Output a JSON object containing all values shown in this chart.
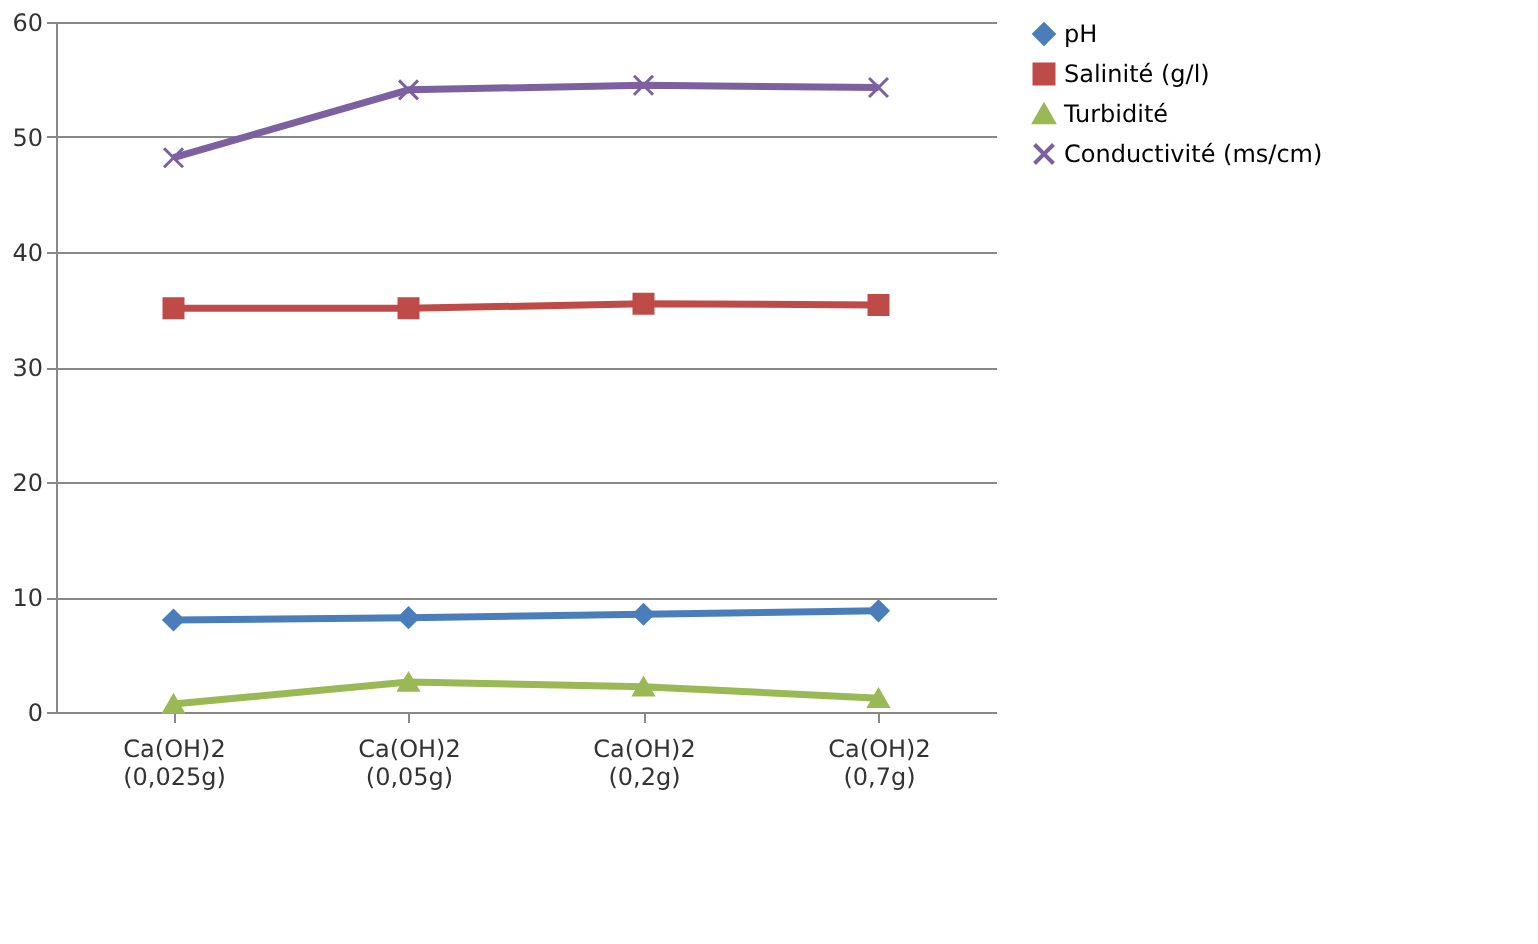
{
  "chart_data": {
    "type": "line",
    "categories": [
      "Ca(OH)2 (0,025g)",
      "Ca(OH)2 (0,05g)",
      "Ca(OH)2 (0,2g)",
      "Ca(OH)2 (0,7g)"
    ],
    "series": [
      {
        "name": "pH",
        "color": "#4a7ebb",
        "marker": "diamond",
        "values": [
          8.0,
          8.2,
          8.5,
          8.8
        ]
      },
      {
        "name": "Salinité (g/l)",
        "color": "#be4b48",
        "marker": "square",
        "values": [
          35.1,
          35.1,
          35.5,
          35.4
        ]
      },
      {
        "name": "Turbidité",
        "color": "#98b954",
        "marker": "triangle",
        "values": [
          0.7,
          2.6,
          2.2,
          1.2
        ]
      },
      {
        "name": "Conductivité (ms/cm)",
        "color": "#7d60a0",
        "marker": "cross",
        "values": [
          48.2,
          54.1,
          54.5,
          54.3
        ]
      }
    ],
    "ylim": [
      0,
      60
    ],
    "yticks": [
      0,
      10,
      20,
      30,
      40,
      50,
      60
    ],
    "grid": "y",
    "legend": "right",
    "line_style": "solid"
  }
}
